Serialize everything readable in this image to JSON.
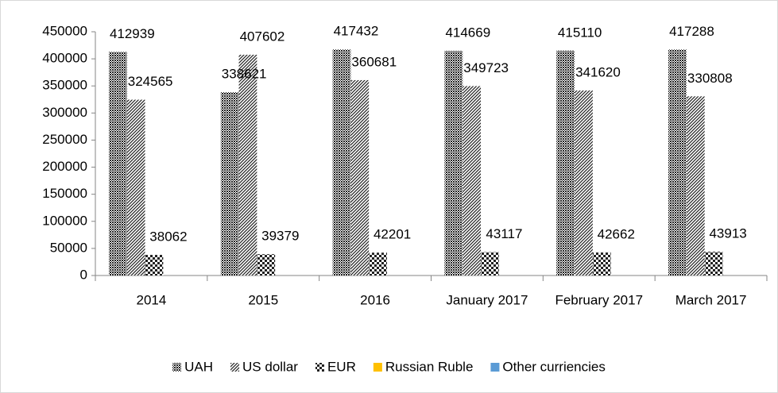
{
  "chart_data": {
    "type": "bar",
    "categories": [
      "2014",
      "2015",
      "2016",
      "January 2017",
      "February 2017",
      "March 2017"
    ],
    "series": [
      {
        "name": "UAH",
        "color": "#1a1a1a",
        "pattern": "dense",
        "values": [
          412939,
          338621,
          417432,
          414669,
          415110,
          417288
        ]
      },
      {
        "name": "US dollar",
        "color": "#1a1a1a",
        "pattern": "hatch",
        "values": [
          324565,
          407602,
          360681,
          349723,
          341620,
          330808
        ]
      },
      {
        "name": "EUR",
        "color": "#1a1a1a",
        "pattern": "sparse",
        "values": [
          38062,
          39379,
          42201,
          43117,
          42662,
          43913
        ]
      },
      {
        "name": "Russian Ruble",
        "color": "#ffc000",
        "pattern": "solid",
        "values": [
          0,
          0,
          0,
          0,
          0,
          0
        ]
      },
      {
        "name": "Other curriencies",
        "color": "#5b9bd5",
        "pattern": "solid",
        "values": [
          0,
          0,
          0,
          0,
          0,
          0
        ]
      }
    ],
    "value_labels": [
      [
        "412939",
        "338621",
        "417432",
        "414669",
        "415110",
        "417288"
      ],
      [
        "324565",
        "407602",
        "360681",
        "349723",
        "341620",
        "330808"
      ],
      [
        "38062",
        "39379",
        "42201",
        "43117",
        "42662",
        "43913"
      ]
    ],
    "ylim": [
      0,
      450000
    ],
    "yticks": [
      0,
      50000,
      100000,
      150000,
      200000,
      250000,
      300000,
      350000,
      400000,
      450000
    ],
    "grid": false,
    "legend": "bottom"
  }
}
